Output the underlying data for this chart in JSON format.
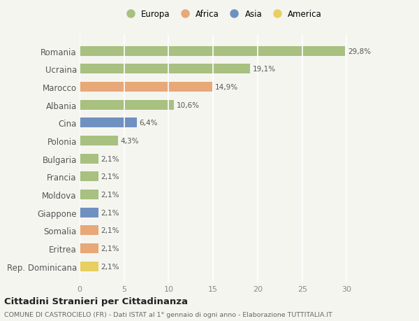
{
  "categories": [
    "Romania",
    "Ucraina",
    "Marocco",
    "Albania",
    "Cina",
    "Polonia",
    "Bulgaria",
    "Francia",
    "Moldova",
    "Giappone",
    "Somalia",
    "Eritrea",
    "Rep. Dominicana"
  ],
  "values": [
    29.8,
    19.1,
    14.9,
    10.6,
    6.4,
    4.3,
    2.1,
    2.1,
    2.1,
    2.1,
    2.1,
    2.1,
    2.1
  ],
  "labels": [
    "29,8%",
    "19,1%",
    "14,9%",
    "10,6%",
    "6,4%",
    "4,3%",
    "2,1%",
    "2,1%",
    "2,1%",
    "2,1%",
    "2,1%",
    "2,1%",
    "2,1%"
  ],
  "continents": [
    "Europa",
    "Europa",
    "Africa",
    "Europa",
    "Asia",
    "Europa",
    "Europa",
    "Europa",
    "Europa",
    "Asia",
    "Africa",
    "Africa",
    "America"
  ],
  "colors": {
    "Europa": "#a8c080",
    "Africa": "#e8a878",
    "Asia": "#7090c0",
    "America": "#e8d060"
  },
  "legend_order": [
    "Europa",
    "Africa",
    "Asia",
    "America"
  ],
  "xlim": [
    0,
    32
  ],
  "xticks": [
    0,
    5,
    10,
    15,
    20,
    25,
    30
  ],
  "title": "Cittadini Stranieri per Cittadinanza",
  "subtitle": "COMUNE DI CASTROCIELO (FR) - Dati ISTAT al 1° gennaio di ogni anno - Elaborazione TUTTITALIA.IT",
  "bg_color": "#f5f5f0",
  "grid_color": "#ffffff",
  "bar_height": 0.55
}
